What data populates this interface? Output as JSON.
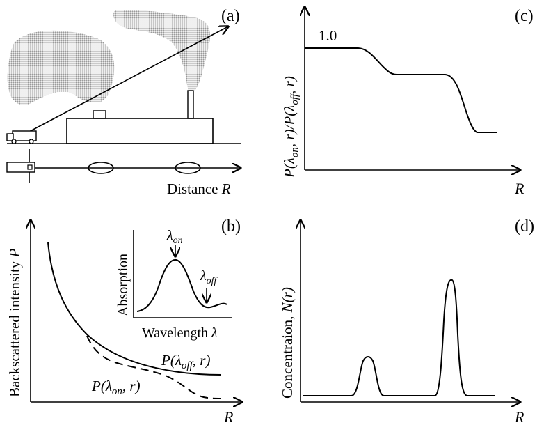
{
  "panels": {
    "a": {
      "tag": "(a)",
      "axis_label": "Distance ",
      "axis_var": "R"
    },
    "b": {
      "tag": "(b)",
      "ylabel": "Backscattered intensity ",
      "ylabel_var": "P",
      "xlabel": "R",
      "curve_off_label": "P(λ",
      "curve_off_sub": "off",
      "curve_off_tail": ", r)",
      "curve_on_label": "P(λ",
      "curve_on_sub": "on",
      "curve_on_tail": ", r)",
      "inset": {
        "ylabel": "Absorption",
        "xlabel": "Wavelength ",
        "xlabel_var": "λ",
        "on_label": "λ",
        "on_sub": "on",
        "off_label": "λ",
        "off_sub": "off"
      }
    },
    "c": {
      "tag": "(c)",
      "ylabel": "P(λon, r)/P(λoff, r)",
      "ylabel_parts": [
        "P(λ",
        "on",
        ", r)/P(λ",
        "off",
        ", r)"
      ],
      "xlabel": "R",
      "level_label": "1.0"
    },
    "d": {
      "tag": "(d)",
      "ylabel": "Concentraion, ",
      "ylabel_var": "N(r)",
      "xlabel": "R"
    }
  },
  "colors": {
    "stroke": "#000000",
    "plume": "#c8c8c8"
  }
}
